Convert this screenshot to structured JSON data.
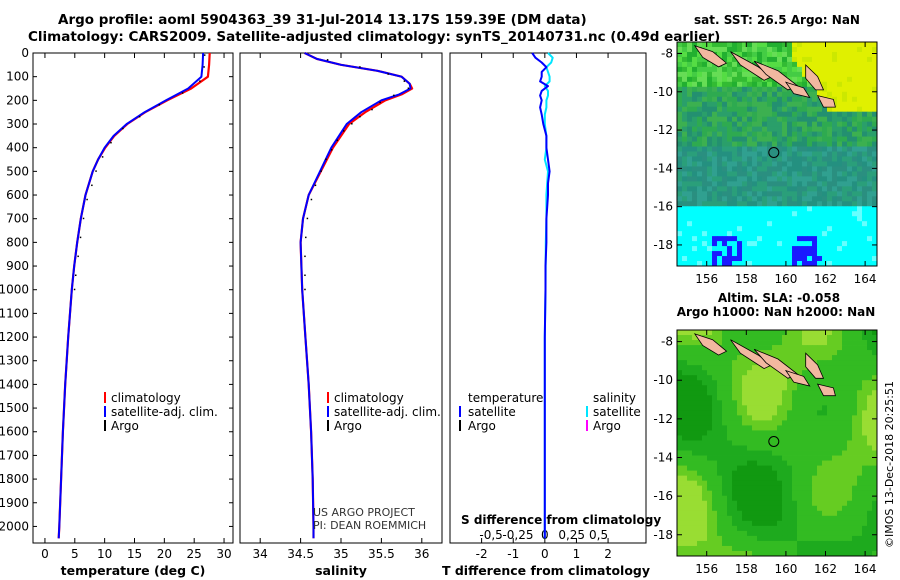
{
  "titles": {
    "line1": "Argo profile: aoml 5904363_39 31-Jul-2014 13.17S 159.39E (DM data)",
    "line2": "Climatology: CARS2009. Satellite-adjusted climatology: synTS_20140731.nc (0.49d earlier)"
  },
  "footer": {
    "project": "US ARGO PROJECT",
    "pi": "PI: DEAN ROEMMICH",
    "imos": "©IMOS 13-Dec-2018 20:25:51"
  },
  "colors": {
    "climatology": "#ff0000",
    "satellite_adj": "#0000ff",
    "argo": "#000000",
    "salinity_satellite": "#00e5ff",
    "salinity_argo": "#ff00ff"
  },
  "chart_data": [
    {
      "type": "line",
      "xlabel": "temperature (deg C)",
      "ylabel": "",
      "xlim": [
        -2,
        31.5
      ],
      "ylim": [
        2070,
        0
      ],
      "xticks": [
        "0",
        "5",
        "10",
        "15",
        "20",
        "25",
        "30"
      ],
      "yticks": [
        "0",
        "100",
        "200",
        "300",
        "400",
        "500",
        "600",
        "700",
        "800",
        "900",
        "1000",
        "1100",
        "1200",
        "1300",
        "1400",
        "1500",
        "1600",
        "1700",
        "1800",
        "1900",
        "2000"
      ],
      "series": [
        {
          "name": "climatology",
          "y": [
            0,
            50,
            100,
            150,
            200,
            250,
            300,
            350,
            400,
            450,
            500,
            600,
            700,
            800,
            900,
            1000,
            1200,
            1400,
            1600,
            1800,
            2000,
            2050
          ],
          "x": [
            27.6,
            27.5,
            27.3,
            24.5,
            20.5,
            16.8,
            13.8,
            11.6,
            10.1,
            8.9,
            8.0,
            6.8,
            6.0,
            5.4,
            4.9,
            4.5,
            3.9,
            3.4,
            3.0,
            2.7,
            2.4,
            2.3
          ]
        },
        {
          "name": "satellite-adj. clim.",
          "y": [
            0,
            50,
            100,
            150,
            200,
            250,
            300,
            350,
            400,
            450,
            500,
            600,
            700,
            800,
            900,
            1000,
            1200,
            1400,
            1600,
            1800,
            2000,
            2050
          ],
          "x": [
            26.5,
            26.4,
            26.2,
            24.0,
            20.3,
            16.7,
            13.7,
            11.5,
            10.0,
            8.9,
            8.0,
            6.8,
            6.0,
            5.4,
            4.9,
            4.5,
            3.9,
            3.4,
            3.0,
            2.7,
            2.4,
            2.3
          ]
        },
        {
          "name": "Argo",
          "y": [
            10,
            60,
            120,
            170,
            220,
            270,
            320,
            380,
            440,
            500,
            560,
            620,
            700,
            780,
            860,
            940,
            1000
          ],
          "x": [
            26.3,
            26.2,
            25.5,
            22.6,
            18.7,
            15.4,
            12.6,
            10.6,
            9.2,
            8.1,
            7.4,
            6.6,
            6.0,
            5.5,
            5.1,
            4.7,
            4.5
          ]
        }
      ]
    },
    {
      "type": "line",
      "xlabel": "salinity",
      "ylabel": "",
      "xlim": [
        33.75,
        36.25
      ],
      "ylim": [
        2070,
        0
      ],
      "xticks": [
        "34",
        "34.5",
        "35",
        "35.5",
        "36"
      ],
      "series": [
        {
          "name": "climatology",
          "y": [
            0,
            25,
            50,
            75,
            100,
            130,
            150,
            175,
            200,
            250,
            300,
            400,
            500,
            600,
            700,
            800,
            1000,
            1200,
            1400,
            1600,
            1800,
            2000,
            2050
          ],
          "x": [
            34.55,
            34.7,
            35.0,
            35.45,
            35.75,
            35.85,
            35.88,
            35.75,
            35.55,
            35.3,
            35.1,
            34.9,
            34.75,
            34.6,
            34.53,
            34.5,
            34.52,
            34.56,
            34.6,
            34.63,
            34.65,
            34.66,
            34.66
          ]
        },
        {
          "name": "satellite-adj. clim.",
          "y": [
            0,
            25,
            50,
            75,
            100,
            130,
            150,
            175,
            200,
            250,
            300,
            400,
            500,
            600,
            700,
            800,
            1000,
            1200,
            1400,
            1600,
            1800,
            2000,
            2050
          ],
          "x": [
            34.55,
            34.7,
            35.0,
            35.45,
            35.75,
            35.85,
            35.86,
            35.72,
            35.5,
            35.25,
            35.07,
            34.88,
            34.74,
            34.6,
            34.53,
            34.5,
            34.52,
            34.56,
            34.6,
            34.63,
            34.65,
            34.66,
            34.66
          ]
        },
        {
          "name": "Argo",
          "y": [
            30,
            60,
            90,
            120,
            150,
            180,
            210,
            240,
            270,
            300,
            330,
            370,
            410,
            450,
            500,
            560,
            620,
            700,
            780,
            860,
            940,
            1000
          ],
          "x": [
            34.8,
            35.2,
            35.55,
            35.75,
            35.8,
            35.62,
            35.45,
            35.35,
            35.2,
            35.1,
            35.0,
            34.92,
            34.85,
            34.78,
            34.72,
            34.65,
            34.6,
            34.55,
            34.53,
            34.52,
            34.52,
            34.52
          ]
        }
      ]
    },
    {
      "type": "line",
      "xlabel": "T difference from climatology",
      "title_inside": "S difference from climatology",
      "xlim": [
        -3,
        3.2
      ],
      "ylim": [
        2070,
        0
      ],
      "xticks_bottom": [
        "-2",
        "-1",
        "0",
        "1",
        "2"
      ],
      "xticks_top": [
        "-0.5",
        "-0.25",
        "0",
        "0.25",
        "0.5"
      ],
      "legend": {
        "temperature": "temperature",
        "salinity": "salinity",
        "satellite": "satellite",
        "argo": "Argo"
      },
      "series": [
        {
          "name": "temperature satellite",
          "y": [
            0,
            20,
            40,
            60,
            80,
            100,
            120,
            140,
            160,
            180,
            200,
            230,
            260,
            300,
            350,
            400,
            450,
            500,
            550,
            600,
            700,
            800,
            900,
            1000,
            1200,
            1400,
            1600,
            1800,
            2000,
            2050
          ],
          "x": [
            -0.4,
            -0.3,
            -0.1,
            0.05,
            -0.1,
            -0.1,
            -0.15,
            0.1,
            -0.1,
            -0.15,
            -0.1,
            -0.15,
            -0.1,
            -0.05,
            0.05,
            0.05,
            0.1,
            0.15,
            0.1,
            0.1,
            0.05,
            0.05,
            0.02,
            0.02,
            0.0,
            0.0,
            0.0,
            0.0,
            0.0,
            0.0
          ]
        },
        {
          "name": "salinity satellite",
          "y": [
            0,
            20,
            40,
            60,
            80,
            100,
            120,
            140,
            160,
            180,
            200,
            230,
            260,
            300,
            350,
            400,
            450,
            500,
            600,
            700,
            800,
            1000,
            1200,
            1400,
            1600,
            1800,
            2000,
            2050
          ],
          "x": [
            0.1,
            0.25,
            0.2,
            0.05,
            0.1,
            0.15,
            0.15,
            0.0,
            0.1,
            0.1,
            0.05,
            0.05,
            0.0,
            0.0,
            0.05,
            0.05,
            0.0,
            0.1,
            0.05,
            0.05,
            0.03,
            0.02,
            0.0,
            0.0,
            0.0,
            0.0,
            0.0,
            0.0
          ]
        }
      ]
    },
    {
      "type": "heatmap",
      "title": "sat. SST: 26.5 Argo: NaN",
      "xticks": [
        "156",
        "158",
        "160",
        "162",
        "164"
      ],
      "yticks": [
        "-8",
        "-10",
        "-12",
        "-14",
        "-16",
        "-18"
      ],
      "xlim": [
        154.5,
        164.6
      ],
      "ylim": [
        -19.1,
        -7.4
      ],
      "marker": {
        "lon": 159.39,
        "lat": -13.17
      }
    },
    {
      "type": "heatmap",
      "title": "Altim. SLA: -0.058",
      "subtitle": "Argo h1000: NaN h2000: NaN",
      "xticks": [
        "156",
        "158",
        "160",
        "162",
        "164"
      ],
      "yticks": [
        "-8",
        "-10",
        "-12",
        "-14",
        "-16",
        "-18"
      ],
      "xlim": [
        154.5,
        164.6
      ],
      "ylim": [
        -19.1,
        -7.4
      ],
      "marker": {
        "lon": 159.39,
        "lat": -13.17
      }
    }
  ]
}
